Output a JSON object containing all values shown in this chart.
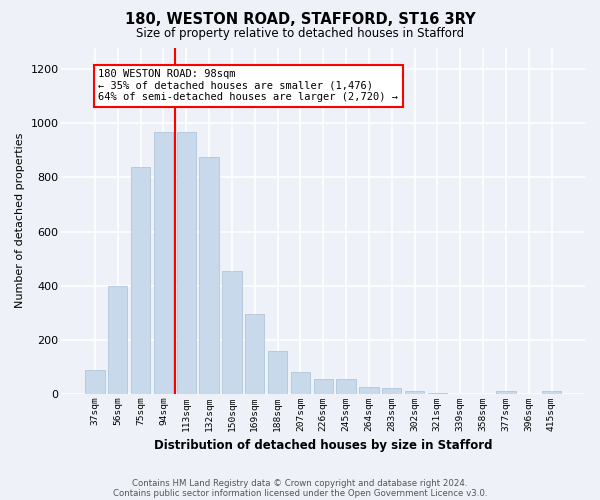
{
  "title": "180, WESTON ROAD, STAFFORD, ST16 3RY",
  "subtitle": "Size of property relative to detached houses in Stafford",
  "xlabel": "Distribution of detached houses by size in Stafford",
  "ylabel": "Number of detached properties",
  "categories": [
    "37sqm",
    "56sqm",
    "75sqm",
    "94sqm",
    "113sqm",
    "132sqm",
    "150sqm",
    "169sqm",
    "188sqm",
    "207sqm",
    "226sqm",
    "245sqm",
    "264sqm",
    "283sqm",
    "302sqm",
    "321sqm",
    "339sqm",
    "358sqm",
    "377sqm",
    "396sqm",
    "415sqm"
  ],
  "values": [
    90,
    400,
    840,
    968,
    968,
    875,
    455,
    295,
    160,
    80,
    55,
    55,
    25,
    20,
    10,
    5,
    0,
    0,
    10,
    0,
    10
  ],
  "bar_color": "#c8d9ec",
  "bar_edgecolor": "#a8c0d8",
  "vline_x": 3.5,
  "vline_color": "red",
  "annotation_text": "180 WESTON ROAD: 98sqm\n← 35% of detached houses are smaller (1,476)\n64% of semi-detached houses are larger (2,720) →",
  "annotation_box_color": "white",
  "annotation_box_edgecolor": "red",
  "ylim": [
    0,
    1280
  ],
  "yticks": [
    0,
    200,
    400,
    600,
    800,
    1000,
    1200
  ],
  "footer1": "Contains HM Land Registry data © Crown copyright and database right 2024.",
  "footer2": "Contains public sector information licensed under the Open Government Licence v3.0.",
  "background_color": "#eef2f8",
  "grid_color": "white"
}
